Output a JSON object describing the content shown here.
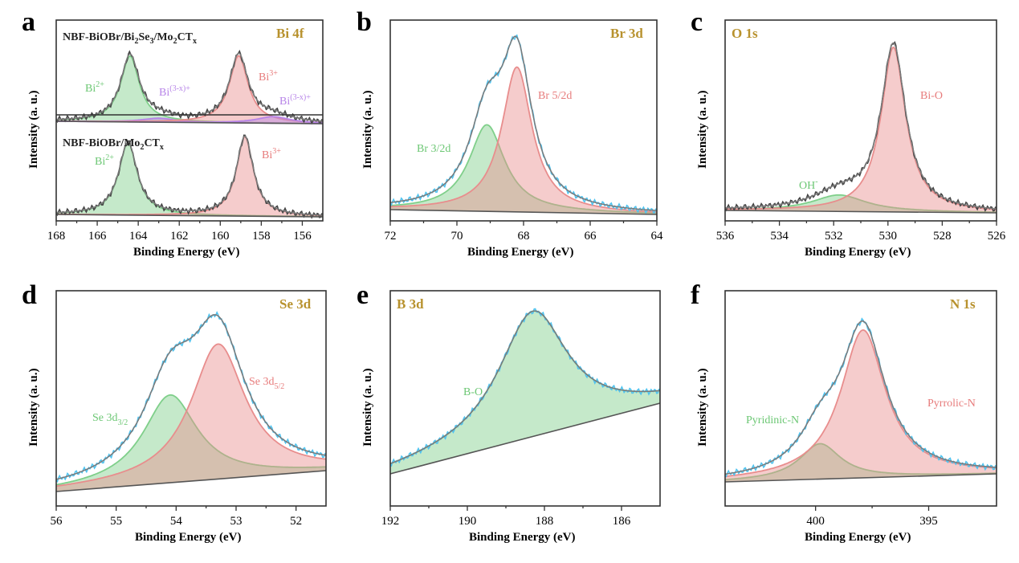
{
  "colors": {
    "green": "#7fcf8a",
    "green_fill": "#8bc98a",
    "red": "#e88d8d",
    "red_fill": "#f0aaaa",
    "blue": "#4fc3ef",
    "purple": "#b784e8",
    "gray": "#7a7a7a",
    "title": "#b8922e"
  },
  "axis_labels": {
    "x": "Binding Energy (eV)",
    "y": "Intensity (a. u.)"
  },
  "chart_data": [
    {
      "panel": "a",
      "type": "line",
      "title": "Bi 4f",
      "xlabel": "Binding Energy (eV)",
      "ylabel": "Intensity (a. u.)",
      "xlim": [
        168,
        155
      ],
      "xticks": [
        "168",
        "166",
        "164",
        "162",
        "160",
        "158",
        "156"
      ],
      "xtick_values": [
        168,
        166,
        164,
        162,
        160,
        158,
        156
      ],
      "samples": [
        {
          "name_parts": {
            "base": "NBF-BiOBr/Bi",
            "s1": "2",
            "mid": "Se",
            "s2": "3",
            "mid2": "/Mo",
            "s3": "2",
            "end": "CT",
            "s4": "x"
          },
          "peaks": [
            {
              "label": "Bi",
              "sup": "2+",
              "center": 164.4,
              "height": 1.0,
              "width": 0.55,
              "color": "green"
            },
            {
              "label": "Bi",
              "sup": "(3-x)+",
              "center": 163.0,
              "height": 0.06,
              "width": 1.0,
              "color": "purple"
            },
            {
              "label": "Bi",
              "sup": "3+",
              "center": 159.1,
              "height": 1.02,
              "width": 0.55,
              "color": "red"
            },
            {
              "label": "Bi",
              "sup": "(3-x)+",
              "center": 157.4,
              "height": 0.1,
              "width": 1.0,
              "color": "purple"
            }
          ]
        },
        {
          "name_parts": {
            "base": "NBF-BiOBr/Mo",
            "s1": "2",
            "mid": "CT",
            "s2": "x"
          },
          "peaks": [
            {
              "label": "Bi",
              "sup": "2+",
              "center": 164.5,
              "height": 1.0,
              "width": 0.55,
              "color": "green"
            },
            {
              "label": "Bi",
              "sup": "3+",
              "center": 158.8,
              "height": 1.1,
              "width": 0.5,
              "color": "red"
            }
          ]
        }
      ]
    },
    {
      "panel": "b",
      "type": "line",
      "title": "Br 3d",
      "xlabel": "Binding Energy (eV)",
      "ylabel": "Intensity (a. u.)",
      "xlim": [
        72,
        64
      ],
      "xticks": [
        "72",
        "70",
        "68",
        "66",
        "64"
      ],
      "xtick_values": [
        72,
        70,
        68,
        66,
        64
      ],
      "peaks": [
        {
          "label": "Br 3/2d",
          "center": 69.1,
          "height": 0.55,
          "width": 0.65,
          "color": "green"
        },
        {
          "label": "Br 5/2d",
          "center": 68.2,
          "height": 0.92,
          "width": 0.55,
          "color": "red"
        }
      ]
    },
    {
      "panel": "c",
      "type": "line",
      "title": "O 1s",
      "xlabel": "Binding Energy (eV)",
      "ylabel": "Intensity (a. u.)",
      "xlim": [
        536,
        526
      ],
      "xticks": [
        "536",
        "534",
        "532",
        "530",
        "528",
        "526"
      ],
      "xtick_values": [
        536,
        534,
        532,
        530,
        528,
        526
      ],
      "peaks": [
        {
          "label": "OH",
          "sup": "-",
          "center": 531.8,
          "height": 0.1,
          "width": 1.2,
          "color": "green"
        },
        {
          "label": "Bi-O",
          "center": 529.8,
          "height": 1.0,
          "width": 0.55,
          "color": "red"
        }
      ]
    },
    {
      "panel": "d",
      "type": "line",
      "title": "Se 3d",
      "xlabel": "Binding Energy (eV)",
      "ylabel": "Intensity (a. u.)",
      "xlim": [
        56,
        51.5
      ],
      "xticks": [
        "56",
        "55",
        "54",
        "53",
        "52"
      ],
      "xtick_values": [
        56,
        55,
        54,
        53,
        52
      ],
      "peaks": [
        {
          "label": "Se 3d",
          "sub": "3/2",
          "center": 54.1,
          "height": 0.52,
          "width": 0.55,
          "color": "green"
        },
        {
          "label": "Se 3d",
          "sub": "5/2",
          "center": 53.3,
          "height": 0.8,
          "width": 0.55,
          "color": "red"
        }
      ]
    },
    {
      "panel": "e",
      "type": "line",
      "title": "B 3d",
      "xlabel": "Binding Energy (eV)",
      "ylabel": "Intensity (a. u.)",
      "xlim": [
        192,
        185
      ],
      "xticks": [
        "192",
        "190",
        "188",
        "186"
      ],
      "xtick_values": [
        192,
        190,
        188,
        186
      ],
      "peaks": [
        {
          "label": "B-O",
          "center": 188.3,
          "height": 0.78,
          "width": 1.1,
          "color": "green"
        }
      ]
    },
    {
      "panel": "f",
      "type": "line",
      "title": "N 1s",
      "xlabel": "Binding Energy (eV)",
      "ylabel": "Intensity (a. u.)",
      "xlim": [
        404,
        392
      ],
      "xticks": [
        "400",
        "395"
      ],
      "xtick_values": [
        400,
        395
      ],
      "peaks": [
        {
          "label": "Pyridinic-N",
          "center": 399.8,
          "height": 0.22,
          "width": 1.1,
          "color": "green"
        },
        {
          "label": "Pyrrolic-N",
          "center": 397.9,
          "height": 0.92,
          "width": 1.2,
          "color": "red"
        }
      ]
    }
  ]
}
